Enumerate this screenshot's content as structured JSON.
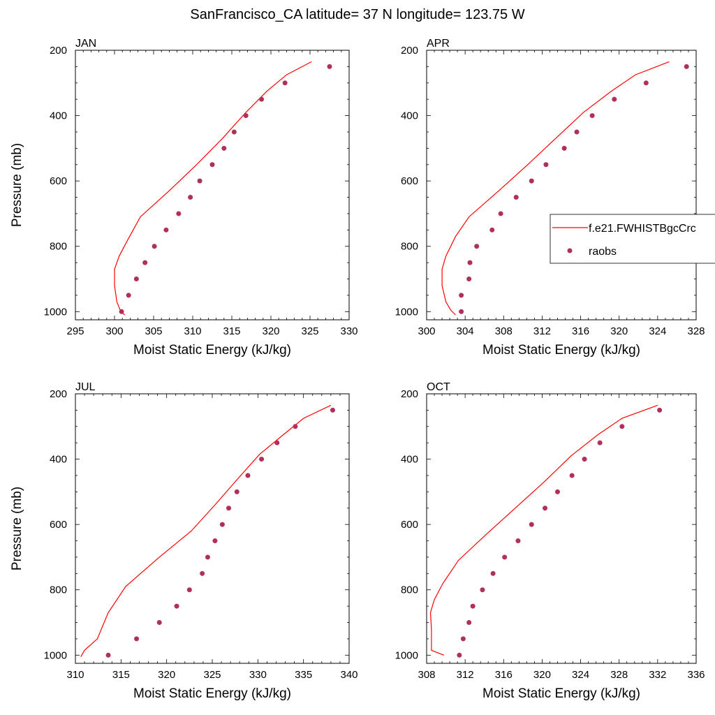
{
  "title": "SanFrancisco_CA  latitude= 37 N longitude= 123.75 W",
  "legend": {
    "model_label": "f.e21.FWHISTBgcCrc",
    "obs_label": "raobs"
  },
  "colors": {
    "model_line": "#ff0000",
    "obs_marker": "#b0305a",
    "axis": "#000000"
  },
  "chart_data": [
    {
      "type": "line",
      "panel_title": "JAN",
      "xlabel": "Moist Static Energy (kJ/kg)",
      "ylabel": "Pressure (mb)",
      "xlim": [
        295,
        330
      ],
      "xticks": [
        295,
        300,
        305,
        310,
        315,
        320,
        325,
        330
      ],
      "ylim": [
        1025,
        200
      ],
      "yticks": [
        200,
        400,
        600,
        800,
        1000
      ],
      "grid": false,
      "series": [
        {
          "name": "f.e21.FWHISTBgcCrc",
          "style": "line",
          "x": [
            325.2,
            322.0,
            319.5,
            316.8,
            313.8,
            310.5,
            307.0,
            303.3,
            301.7,
            300.6,
            300.0,
            300.0,
            300.3,
            300.8,
            301.3
          ],
          "y": [
            235,
            275,
            325,
            390,
            470,
            550,
            630,
            710,
            780,
            830,
            870,
            920,
            970,
            1000,
            1010
          ]
        },
        {
          "name": "raobs",
          "style": "markers",
          "x": [
            327.5,
            321.8,
            318.8,
            316.8,
            315.3,
            314.0,
            312.5,
            310.9,
            309.7,
            308.2,
            306.6,
            305.1,
            303.9,
            302.8,
            301.8,
            300.9
          ],
          "y": [
            250,
            300,
            350,
            400,
            450,
            500,
            550,
            600,
            650,
            700,
            750,
            800,
            850,
            900,
            950,
            1000
          ]
        }
      ]
    },
    {
      "type": "line",
      "panel_title": "APR",
      "xlabel": "Moist Static Energy (kJ/kg)",
      "ylabel": "",
      "xlim": [
        300,
        328
      ],
      "xticks": [
        300,
        304,
        308,
        312,
        316,
        320,
        324,
        328
      ],
      "ylim": [
        1025,
        200
      ],
      "yticks": [
        200,
        400,
        600,
        800,
        1000
      ],
      "grid": false,
      "legend_position": "right",
      "series": [
        {
          "name": "f.e21.FWHISTBgcCrc",
          "style": "line",
          "x": [
            325.2,
            321.7,
            319.2,
            316.3,
            313.4,
            310.5,
            307.5,
            304.4,
            303.0,
            302.0,
            301.6,
            301.6,
            302.0,
            302.5,
            303.0
          ],
          "y": [
            235,
            275,
            325,
            390,
            470,
            550,
            630,
            710,
            770,
            830,
            870,
            920,
            970,
            995,
            1010
          ]
        },
        {
          "name": "raobs",
          "style": "markers",
          "x": [
            327.0,
            322.8,
            319.5,
            317.2,
            315.6,
            314.3,
            312.4,
            310.9,
            309.3,
            307.7,
            306.8,
            305.2,
            304.5,
            304.4,
            303.6,
            303.6
          ],
          "y": [
            250,
            300,
            350,
            400,
            450,
            500,
            550,
            600,
            650,
            700,
            750,
            800,
            850,
            900,
            950,
            1000
          ]
        }
      ]
    },
    {
      "type": "line",
      "panel_title": "JUL",
      "xlabel": "Moist Static Energy (kJ/kg)",
      "ylabel": "Pressure (mb)",
      "xlim": [
        310,
        340
      ],
      "xticks": [
        310,
        315,
        320,
        325,
        330,
        335,
        340
      ],
      "ylim": [
        1025,
        200
      ],
      "yticks": [
        200,
        400,
        600,
        800,
        1000
      ],
      "grid": false,
      "series": [
        {
          "name": "f.e21.FWHISTBgcCrc",
          "style": "line",
          "x": [
            338.0,
            335.0,
            332.8,
            330.2,
            327.8,
            325.3,
            322.7,
            319.2,
            315.5,
            313.6,
            312.4,
            311.0,
            310.6
          ],
          "y": [
            235,
            275,
            325,
            385,
            460,
            540,
            620,
            700,
            790,
            870,
            950,
            985,
            1005
          ]
        },
        {
          "name": "raobs",
          "style": "markers",
          "x": [
            338.2,
            334.1,
            332.1,
            330.4,
            328.9,
            327.7,
            326.8,
            326.1,
            325.3,
            324.5,
            323.9,
            322.5,
            321.1,
            319.2,
            316.7,
            313.6
          ],
          "y": [
            250,
            300,
            350,
            400,
            450,
            500,
            550,
            600,
            650,
            700,
            750,
            800,
            850,
            900,
            950,
            1000
          ]
        }
      ]
    },
    {
      "type": "line",
      "panel_title": "OCT",
      "xlabel": "Moist Static Energy (kJ/kg)",
      "ylabel": "",
      "xlim": [
        308,
        336
      ],
      "xticks": [
        308,
        312,
        316,
        320,
        324,
        328,
        332,
        336
      ],
      "ylim": [
        1025,
        200
      ],
      "yticks": [
        200,
        400,
        600,
        800,
        1000
      ],
      "grid": false,
      "series": [
        {
          "name": "f.e21.FWHISTBgcCrc",
          "style": "line",
          "x": [
            332.0,
            328.3,
            325.8,
            323.0,
            320.2,
            317.2,
            314.2,
            311.3,
            309.7,
            308.8,
            308.4,
            308.5,
            308.5,
            309.8
          ],
          "y": [
            235,
            275,
            325,
            390,
            470,
            550,
            630,
            710,
            780,
            830,
            870,
            920,
            985,
            1000
          ]
        },
        {
          "name": "raobs",
          "style": "markers",
          "x": [
            332.2,
            328.3,
            326.0,
            324.4,
            323.1,
            321.6,
            320.3,
            318.9,
            317.5,
            316.1,
            314.9,
            313.8,
            312.8,
            312.4,
            311.8,
            311.4
          ],
          "y": [
            250,
            300,
            350,
            400,
            450,
            500,
            550,
            600,
            650,
            700,
            750,
            800,
            850,
            900,
            950,
            1000
          ]
        }
      ]
    }
  ]
}
